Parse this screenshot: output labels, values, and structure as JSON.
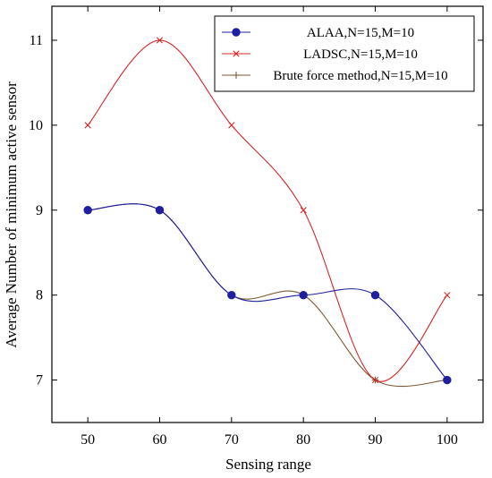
{
  "chart_data": {
    "type": "line",
    "title": "",
    "xlabel": "Sensing range",
    "ylabel": "Average Number of minimum active sensor",
    "xlim": [
      45,
      105
    ],
    "ylim": [
      6.5,
      11.4
    ],
    "x_ticks": [
      50,
      60,
      70,
      80,
      90,
      100
    ],
    "y_ticks": [
      7,
      8,
      9,
      10,
      11
    ],
    "grid": false,
    "legend_position": "top-right",
    "series": [
      {
        "name": "ALAA,N=15,M=10",
        "x": [
          50,
          60,
          70,
          80,
          90,
          100
        ],
        "values": [
          9,
          9,
          8,
          8,
          8,
          7
        ],
        "color": "#1f1fa0",
        "marker": "circle"
      },
      {
        "name": "LADSC,N=15,M=10",
        "x": [
          50,
          60,
          70,
          80,
          90,
          100
        ],
        "values": [
          10,
          11,
          10,
          9,
          7,
          8
        ],
        "color": "#d62728",
        "marker": "x"
      },
      {
        "name": "Brute force method,N=15,M=10",
        "x": [
          50,
          60,
          70,
          80,
          90,
          100
        ],
        "values": [
          9,
          9,
          8,
          8,
          7,
          7
        ],
        "color": "#7a5a32",
        "marker": "plus"
      }
    ]
  }
}
